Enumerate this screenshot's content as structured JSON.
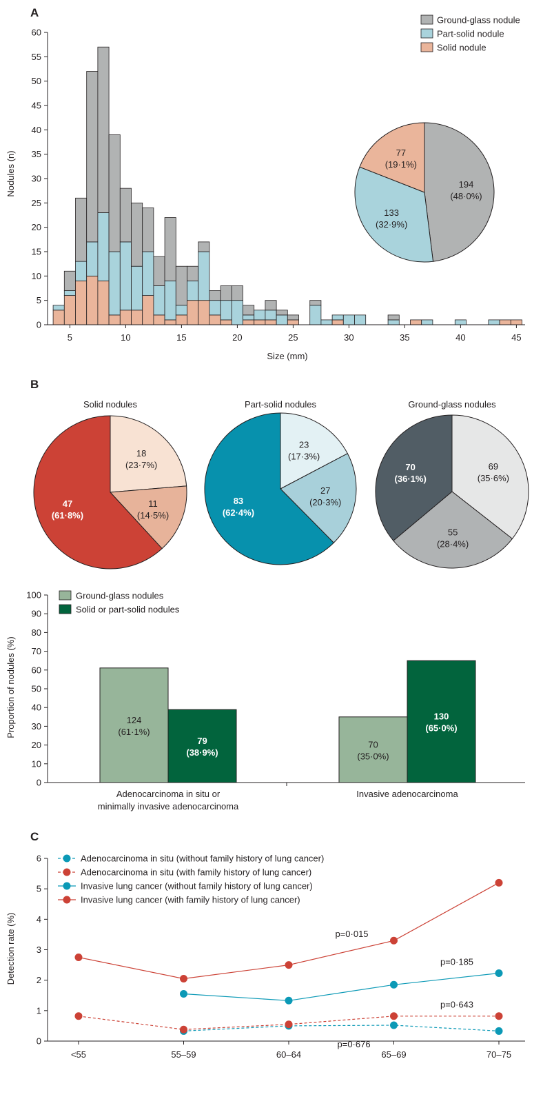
{
  "chart_data": [
    {
      "panel": "A",
      "type": "bar",
      "stacked": true,
      "xlabel": "Size (mm)",
      "ylabel": "Nodules (n)",
      "ylim": [
        0,
        60
      ],
      "xlim": [
        3,
        46
      ],
      "x_ticks": [
        "5",
        "10",
        "15",
        "20",
        "25",
        "30",
        "35",
        "40",
        "45"
      ],
      "y_ticks": [
        "0",
        "5",
        "10",
        "15",
        "20",
        "25",
        "30",
        "35",
        "40",
        "45",
        "50",
        "55",
        "60"
      ],
      "colors": {
        "ggn": "#b1b3b3",
        "part": "#a9d3dc",
        "solid": "#eab59b",
        "edge": "#231f20"
      },
      "legend": [
        "Ground-glass nodule",
        "Part-solid nodule",
        "Solid nodule"
      ],
      "bins": [
        {
          "x": 4,
          "solid": 3,
          "part": 1,
          "ggn": 0
        },
        {
          "x": 5,
          "solid": 6,
          "part": 1,
          "ggn": 4
        },
        {
          "x": 6,
          "solid": 9,
          "part": 4,
          "ggn": 13
        },
        {
          "x": 7,
          "solid": 10,
          "part": 7,
          "ggn": 35
        },
        {
          "x": 8,
          "solid": 9,
          "part": 14,
          "ggn": 34
        },
        {
          "x": 9,
          "solid": 2,
          "part": 13,
          "ggn": 24
        },
        {
          "x": 10,
          "solid": 3,
          "part": 14,
          "ggn": 11
        },
        {
          "x": 11,
          "solid": 3,
          "part": 9,
          "ggn": 13
        },
        {
          "x": 12,
          "solid": 6,
          "part": 9,
          "ggn": 9
        },
        {
          "x": 13,
          "solid": 2,
          "part": 6,
          "ggn": 6
        },
        {
          "x": 14,
          "solid": 1,
          "part": 8,
          "ggn": 13
        },
        {
          "x": 15,
          "solid": 2,
          "part": 2,
          "ggn": 8
        },
        {
          "x": 16,
          "solid": 5,
          "part": 4,
          "ggn": 3
        },
        {
          "x": 17,
          "solid": 5,
          "part": 10,
          "ggn": 2
        },
        {
          "x": 18,
          "solid": 2,
          "part": 3,
          "ggn": 2
        },
        {
          "x": 19,
          "solid": 1,
          "part": 4,
          "ggn": 3
        },
        {
          "x": 20,
          "solid": 0,
          "part": 5,
          "ggn": 3
        },
        {
          "x": 21,
          "solid": 1,
          "part": 1,
          "ggn": 2
        },
        {
          "x": 22,
          "solid": 1,
          "part": 2,
          "ggn": 0
        },
        {
          "x": 23,
          "solid": 1,
          "part": 2,
          "ggn": 2
        },
        {
          "x": 24,
          "solid": 0,
          "part": 2,
          "ggn": 1
        },
        {
          "x": 25,
          "solid": 1,
          "part": 0,
          "ggn": 1
        },
        {
          "x": 27,
          "solid": 0,
          "part": 4,
          "ggn": 1
        },
        {
          "x": 28,
          "solid": 0,
          "part": 1,
          "ggn": 0
        },
        {
          "x": 29,
          "solid": 1,
          "part": 1,
          "ggn": 0
        },
        {
          "x": 30,
          "solid": 0,
          "part": 2,
          "ggn": 0
        },
        {
          "x": 31,
          "solid": 0,
          "part": 2,
          "ggn": 0
        },
        {
          "x": 34,
          "solid": 0,
          "part": 1,
          "ggn": 1
        },
        {
          "x": 36,
          "solid": 1,
          "part": 0,
          "ggn": 0
        },
        {
          "x": 37,
          "solid": 0,
          "part": 1,
          "ggn": 0
        },
        {
          "x": 40,
          "solid": 0,
          "part": 1,
          "ggn": 0
        },
        {
          "x": 43,
          "solid": 0,
          "part": 1,
          "ggn": 0
        },
        {
          "x": 44,
          "solid": 1,
          "part": 0,
          "ggn": 0
        },
        {
          "x": 45,
          "solid": 1,
          "part": 0,
          "ggn": 0
        }
      ],
      "inset_pie": {
        "slices": [
          {
            "key": "ggn",
            "value": 194,
            "label": "194",
            "pct": "(48·0%)",
            "color": "#b1b3b3"
          },
          {
            "key": "part",
            "value": 133,
            "label": "133",
            "pct": "(32·9%)",
            "color": "#a9d3dc"
          },
          {
            "key": "solid",
            "value": 77,
            "label": "77",
            "pct": "(19·1%)",
            "color": "#eab59b"
          }
        ]
      }
    },
    {
      "panel": "B",
      "type": "pie",
      "pies": [
        {
          "title": "Solid nodules",
          "slices": [
            {
              "value": 18,
              "label": "18",
              "pct": "(23·7%)",
              "color": "#f8e2d3",
              "bold": false
            },
            {
              "value": 11,
              "label": "11",
              "pct": "(14·5%)",
              "color": "#e7b39a",
              "bold": false
            },
            {
              "value": 47,
              "label": "47",
              "pct": "(61·8%)",
              "color": "#cc4236",
              "bold": true
            }
          ]
        },
        {
          "title": "Part-solid nodules",
          "slices": [
            {
              "value": 23,
              "label": "23",
              "pct": "(17·3%)",
              "color": "#e3f1f4",
              "bold": false
            },
            {
              "value": 27,
              "label": "27",
              "pct": "(20·3%)",
              "color": "#a8d0da",
              "bold": false
            },
            {
              "value": 83,
              "label": "83",
              "pct": "(62·4%)",
              "color": "#0791ad",
              "bold": true
            }
          ]
        },
        {
          "title": "Ground-glass nodules",
          "slices": [
            {
              "value": 69,
              "label": "69",
              "pct": "(35·6%)",
              "color": "#e6e7e7",
              "bold": false
            },
            {
              "value": 55,
              "label": "55",
              "pct": "(28·4%)",
              "color": "#b0b3b4",
              "bold": false
            },
            {
              "value": 70,
              "label": "70",
              "pct": "(36·1%)",
              "color": "#515d65",
              "bold": true
            }
          ]
        }
      ]
    },
    {
      "panel": "B-bar",
      "type": "bar",
      "ylabel": "Proportion of nodules (%)",
      "ylim": [
        0,
        100
      ],
      "y_ticks": [
        "0",
        "10",
        "20",
        "30",
        "40",
        "50",
        "60",
        "70",
        "80",
        "90",
        "100"
      ],
      "legend": [
        "Ground-glass nodules",
        "Solid or part-solid nodules"
      ],
      "colors": {
        "ggn": "#97b59a",
        "solid": "#02643d"
      },
      "groups": [
        {
          "category_lines": [
            "Adenocarcinoma in situ or",
            "minimally invasive adenocarcinoma"
          ],
          "ggn": {
            "value": 61.1,
            "n": "124",
            "pct": "(61·1%)"
          },
          "solid": {
            "value": 38.9,
            "n": "79",
            "pct": "(38·9%)"
          }
        },
        {
          "category_lines": [
            "Invasive adenocarcinoma"
          ],
          "ggn": {
            "value": 35.0,
            "n": "70",
            "pct": "(35·0%)"
          },
          "solid": {
            "value": 65.0,
            "n": "130",
            "pct": "(65·0%)"
          }
        }
      ]
    },
    {
      "panel": "C",
      "type": "line",
      "ylabel": "Detection rate (%)",
      "ylim": [
        0,
        6
      ],
      "y_ticks": [
        "0",
        "1",
        "2",
        "3",
        "4",
        "5",
        "6"
      ],
      "categories": [
        "<55",
        "55–59",
        "60–64",
        "65–69",
        "70–75"
      ],
      "series": [
        {
          "name": "Adenocarcinoma in situ (without family history of lung cancer)",
          "color": "#0b99b6",
          "dashed": true,
          "values": [
            null,
            0.33,
            0.5,
            0.52,
            0.33
          ]
        },
        {
          "name": "Adenocarcinoma in situ (with family history of lung cancer)",
          "color": "#cc4236",
          "dashed": true,
          "values": [
            0.82,
            0.38,
            0.55,
            0.82,
            0.82
          ]
        },
        {
          "name": "Invasive lung cancer (without family history of lung cancer)",
          "color": "#0b99b6",
          "dashed": false,
          "values": [
            null,
            1.55,
            1.33,
            1.85,
            2.23
          ]
        },
        {
          "name": "Invasive lung cancer (with family history of lung cancer)",
          "color": "#cc4236",
          "dashed": false,
          "values": [
            2.75,
            2.05,
            2.5,
            3.3,
            5.2
          ]
        }
      ],
      "annotations": [
        {
          "text": "p=0·015",
          "category_index": 2.6,
          "y": 3.42
        },
        {
          "text": "p=0·185",
          "category_index": 3.6,
          "y": 2.5
        },
        {
          "text": "p=0·643",
          "category_index": 3.6,
          "y": 1.1
        },
        {
          "text": "p=0·676",
          "category_index": 2.62,
          "y": -0.2
        }
      ]
    }
  ],
  "labels": {
    "a": "A",
    "b": "B",
    "c": "C"
  }
}
